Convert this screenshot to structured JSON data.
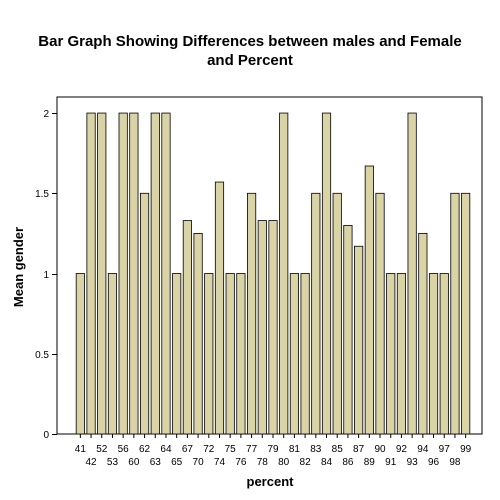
{
  "chart_data": {
    "type": "bar",
    "title_lines": [
      "Bar Graph Showing Differences between males and Female",
      "and Percent"
    ],
    "xlabel": "percent",
    "ylabel": "Mean gender",
    "ylim": [
      0,
      2.1
    ],
    "yticks": [
      0,
      0.5,
      1,
      1.5,
      2
    ],
    "ytick_labels": [
      "0",
      "0.5",
      "1",
      "1.5",
      "2"
    ],
    "categories": [
      "41",
      "42",
      "52",
      "53",
      "56",
      "60",
      "62",
      "63",
      "64",
      "65",
      "67",
      "70",
      "72",
      "74",
      "75",
      "76",
      "77",
      "78",
      "79",
      "80",
      "81",
      "82",
      "83",
      "84",
      "85",
      "86",
      "87",
      "89",
      "90",
      "91",
      "92",
      "93",
      "94",
      "96",
      "97",
      "98",
      "99"
    ],
    "values": [
      1,
      2,
      2,
      1,
      2,
      2,
      1.5,
      2,
      2,
      1,
      1.33,
      1.25,
      1,
      1.57,
      1,
      1,
      1.5,
      1.33,
      1.33,
      2,
      1,
      1,
      1.5,
      2,
      1.5,
      1.3,
      1.17,
      1.67,
      1.5,
      1,
      1,
      2,
      1.25,
      1,
      1,
      1.5,
      1.5
    ],
    "bar_color": "#d9d3a6",
    "bar_stroke": "#000000",
    "plot_background": "#ffffff",
    "grid": false
  }
}
